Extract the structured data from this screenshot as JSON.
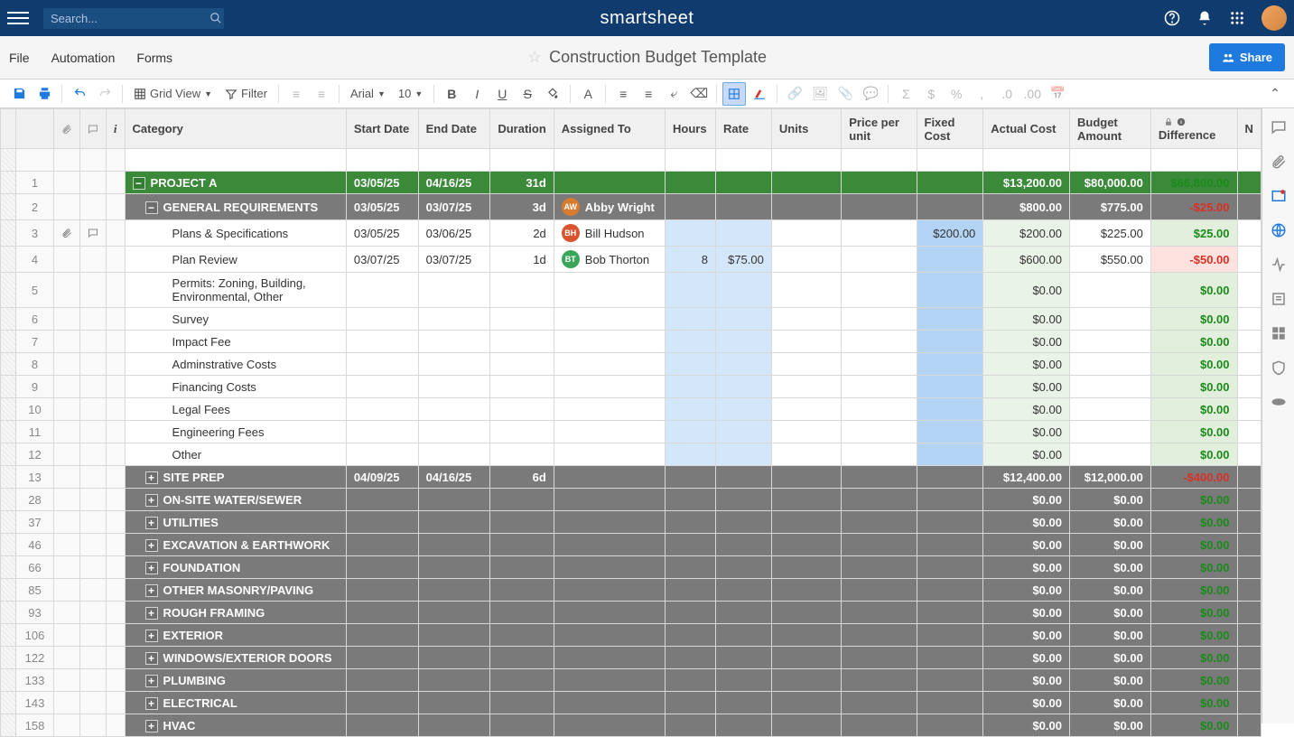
{
  "header": {
    "search_placeholder": "Search...",
    "brand": "smartsheet"
  },
  "menubar": {
    "file": "File",
    "automation": "Automation",
    "forms": "Forms",
    "title": "Construction Budget Template",
    "share": "Share"
  },
  "toolbar": {
    "grid_view": "Grid View",
    "filter": "Filter",
    "font": "Arial",
    "fontsize": "10"
  },
  "columns": {
    "category": "Category",
    "start_date": "Start Date",
    "end_date": "End Date",
    "duration": "Duration",
    "assigned_to": "Assigned To",
    "hours": "Hours",
    "rate": "Rate",
    "units": "Units",
    "ppu": "Price per unit",
    "fixed": "Fixed Cost",
    "actual": "Actual Cost",
    "budget": "Budget Amount",
    "difference": "Difference",
    "n": "N"
  },
  "rows": [
    {
      "num": "1",
      "type": "green",
      "expand": "−",
      "indent": 0,
      "cat": "PROJECT A",
      "start": "03/05/25",
      "end": "04/16/25",
      "dur": "31d",
      "assign": "",
      "hours": "",
      "rate": "",
      "units": "",
      "ppu": "",
      "fixed": "",
      "actual": "$13,200.00",
      "budget": "$80,000.00",
      "diff": "$66,800.00",
      "diffclass": "pos"
    },
    {
      "num": "2",
      "type": "gray",
      "expand": "−",
      "indent": 1,
      "cat": "GENERAL REQUIREMENTS",
      "start": "03/05/25",
      "end": "03/07/25",
      "dur": "3d",
      "assign": "Abby Wright",
      "chip": "#d97b2e",
      "initials": "AW",
      "hours": "",
      "rate": "",
      "units": "",
      "ppu": "",
      "fixed": "",
      "actual": "$800.00",
      "budget": "$775.00",
      "diff": "-$25.00",
      "diffclass": "neg"
    },
    {
      "num": "3",
      "type": "white",
      "attach": true,
      "comment": true,
      "indent": 2,
      "cat": "Plans & Specifications",
      "start": "03/05/25",
      "end": "03/06/25",
      "dur": "2d",
      "assign": "Bill Hudson",
      "chip": "#d9542e",
      "initials": "BH",
      "hours": "",
      "rate": "",
      "units": "",
      "ppu": "",
      "fixed": "$200.00",
      "actual": "$200.00",
      "budget": "$225.00",
      "diff": "$25.00",
      "diffclass": "pos"
    },
    {
      "num": "4",
      "type": "white",
      "indent": 2,
      "cat": "Plan Review",
      "start": "03/07/25",
      "end": "03/07/25",
      "dur": "1d",
      "assign": "Bob Thorton",
      "chip": "#3aa65a",
      "initials": "BT",
      "hours": "8",
      "rate": "$75.00",
      "units": "",
      "ppu": "",
      "fixed": "",
      "actual": "$600.00",
      "budget": "$550.00",
      "diff": "-$50.00",
      "diffclass": "neg"
    },
    {
      "num": "5",
      "type": "white",
      "indent": 2,
      "cat": "Permits: Zoning, Building, Environmental, Other",
      "start": "",
      "end": "",
      "dur": "",
      "assign": "",
      "hours": "",
      "rate": "",
      "units": "",
      "ppu": "",
      "fixed": "",
      "actual": "$0.00",
      "budget": "",
      "diff": "$0.00",
      "diffclass": "pos"
    },
    {
      "num": "6",
      "type": "white",
      "indent": 2,
      "cat": "Survey",
      "start": "",
      "end": "",
      "dur": "",
      "assign": "",
      "hours": "",
      "rate": "",
      "units": "",
      "ppu": "",
      "fixed": "",
      "actual": "$0.00",
      "budget": "",
      "diff": "$0.00",
      "diffclass": "pos"
    },
    {
      "num": "7",
      "type": "white",
      "indent": 2,
      "cat": "Impact Fee",
      "start": "",
      "end": "",
      "dur": "",
      "assign": "",
      "hours": "",
      "rate": "",
      "units": "",
      "ppu": "",
      "fixed": "",
      "actual": "$0.00",
      "budget": "",
      "diff": "$0.00",
      "diffclass": "pos"
    },
    {
      "num": "8",
      "type": "white",
      "indent": 2,
      "cat": "Adminstrative Costs",
      "start": "",
      "end": "",
      "dur": "",
      "assign": "",
      "hours": "",
      "rate": "",
      "units": "",
      "ppu": "",
      "fixed": "",
      "actual": "$0.00",
      "budget": "",
      "diff": "$0.00",
      "diffclass": "pos"
    },
    {
      "num": "9",
      "type": "white",
      "indent": 2,
      "cat": "Financing Costs",
      "start": "",
      "end": "",
      "dur": "",
      "assign": "",
      "hours": "",
      "rate": "",
      "units": "",
      "ppu": "",
      "fixed": "",
      "actual": "$0.00",
      "budget": "",
      "diff": "$0.00",
      "diffclass": "pos"
    },
    {
      "num": "10",
      "type": "white",
      "indent": 2,
      "cat": "Legal Fees",
      "start": "",
      "end": "",
      "dur": "",
      "assign": "",
      "hours": "",
      "rate": "",
      "units": "",
      "ppu": "",
      "fixed": "",
      "actual": "$0.00",
      "budget": "",
      "diff": "$0.00",
      "diffclass": "pos"
    },
    {
      "num": "11",
      "type": "white",
      "indent": 2,
      "cat": "Engineering Fees",
      "start": "",
      "end": "",
      "dur": "",
      "assign": "",
      "hours": "",
      "rate": "",
      "units": "",
      "ppu": "",
      "fixed": "",
      "actual": "$0.00",
      "budget": "",
      "diff": "$0.00",
      "diffclass": "pos"
    },
    {
      "num": "12",
      "type": "white",
      "indent": 2,
      "cat": "Other",
      "start": "",
      "end": "",
      "dur": "",
      "assign": "",
      "hours": "",
      "rate": "",
      "units": "",
      "ppu": "",
      "fixed": "",
      "actual": "$0.00",
      "budget": "",
      "diff": "$0.00",
      "diffclass": "pos"
    },
    {
      "num": "13",
      "type": "gray",
      "expand": "+",
      "indent": 1,
      "cat": "SITE PREP",
      "start": "04/09/25",
      "end": "04/16/25",
      "dur": "6d",
      "assign": "",
      "hours": "",
      "rate": "",
      "units": "",
      "ppu": "",
      "fixed": "",
      "actual": "$12,400.00",
      "budget": "$12,000.00",
      "diff": "-$400.00",
      "diffclass": "neg"
    },
    {
      "num": "28",
      "type": "gray",
      "expand": "+",
      "indent": 1,
      "cat": "ON-SITE WATER/SEWER",
      "start": "",
      "end": "",
      "dur": "",
      "assign": "",
      "hours": "",
      "rate": "",
      "units": "",
      "ppu": "",
      "fixed": "",
      "actual": "$0.00",
      "budget": "$0.00",
      "diff": "$0.00",
      "diffclass": "pos"
    },
    {
      "num": "37",
      "type": "gray",
      "expand": "+",
      "indent": 1,
      "cat": "UTILITIES",
      "start": "",
      "end": "",
      "dur": "",
      "assign": "",
      "hours": "",
      "rate": "",
      "units": "",
      "ppu": "",
      "fixed": "",
      "actual": "$0.00",
      "budget": "$0.00",
      "diff": "$0.00",
      "diffclass": "pos"
    },
    {
      "num": "46",
      "type": "gray",
      "expand": "+",
      "indent": 1,
      "cat": "EXCAVATION & EARTHWORK",
      "start": "",
      "end": "",
      "dur": "",
      "assign": "",
      "hours": "",
      "rate": "",
      "units": "",
      "ppu": "",
      "fixed": "",
      "actual": "$0.00",
      "budget": "$0.00",
      "diff": "$0.00",
      "diffclass": "pos"
    },
    {
      "num": "66",
      "type": "gray",
      "expand": "+",
      "indent": 1,
      "cat": "FOUNDATION",
      "start": "",
      "end": "",
      "dur": "",
      "assign": "",
      "hours": "",
      "rate": "",
      "units": "",
      "ppu": "",
      "fixed": "",
      "actual": "$0.00",
      "budget": "$0.00",
      "diff": "$0.00",
      "diffclass": "pos"
    },
    {
      "num": "85",
      "type": "gray",
      "expand": "+",
      "indent": 1,
      "cat": "OTHER MASONRY/PAVING",
      "start": "",
      "end": "",
      "dur": "",
      "assign": "",
      "hours": "",
      "rate": "",
      "units": "",
      "ppu": "",
      "fixed": "",
      "actual": "$0.00",
      "budget": "$0.00",
      "diff": "$0.00",
      "diffclass": "pos"
    },
    {
      "num": "93",
      "type": "gray",
      "expand": "+",
      "indent": 1,
      "cat": "ROUGH FRAMING",
      "start": "",
      "end": "",
      "dur": "",
      "assign": "",
      "hours": "",
      "rate": "",
      "units": "",
      "ppu": "",
      "fixed": "",
      "actual": "$0.00",
      "budget": "$0.00",
      "diff": "$0.00",
      "diffclass": "pos"
    },
    {
      "num": "106",
      "type": "gray",
      "expand": "+",
      "indent": 1,
      "cat": "EXTERIOR",
      "start": "",
      "end": "",
      "dur": "",
      "assign": "",
      "hours": "",
      "rate": "",
      "units": "",
      "ppu": "",
      "fixed": "",
      "actual": "$0.00",
      "budget": "$0.00",
      "diff": "$0.00",
      "diffclass": "pos"
    },
    {
      "num": "122",
      "type": "gray",
      "expand": "+",
      "indent": 1,
      "cat": "WINDOWS/EXTERIOR DOORS",
      "start": "",
      "end": "",
      "dur": "",
      "assign": "",
      "hours": "",
      "rate": "",
      "units": "",
      "ppu": "",
      "fixed": "",
      "actual": "$0.00",
      "budget": "$0.00",
      "diff": "$0.00",
      "diffclass": "pos"
    },
    {
      "num": "133",
      "type": "gray",
      "expand": "+",
      "indent": 1,
      "cat": "PLUMBING",
      "start": "",
      "end": "",
      "dur": "",
      "assign": "",
      "hours": "",
      "rate": "",
      "units": "",
      "ppu": "",
      "fixed": "",
      "actual": "$0.00",
      "budget": "$0.00",
      "diff": "$0.00",
      "diffclass": "pos"
    },
    {
      "num": "143",
      "type": "gray",
      "expand": "+",
      "indent": 1,
      "cat": "ELECTRICAL",
      "start": "",
      "end": "",
      "dur": "",
      "assign": "",
      "hours": "",
      "rate": "",
      "units": "",
      "ppu": "",
      "fixed": "",
      "actual": "$0.00",
      "budget": "$0.00",
      "diff": "$0.00",
      "diffclass": "pos"
    },
    {
      "num": "158",
      "type": "gray",
      "expand": "+",
      "indent": 1,
      "cat": "HVAC",
      "start": "",
      "end": "",
      "dur": "",
      "assign": "",
      "hours": "",
      "rate": "",
      "units": "",
      "ppu": "",
      "fixed": "",
      "actual": "$0.00",
      "budget": "$0.00",
      "diff": "$0.00",
      "diffclass": "pos"
    }
  ],
  "colors": {
    "header_bg": "#0f3b6e",
    "green_row": "#3a8a3a",
    "gray_row": "#7a7a7a",
    "diff_pos": "#1a8a1a",
    "diff_neg": "#d93025"
  }
}
